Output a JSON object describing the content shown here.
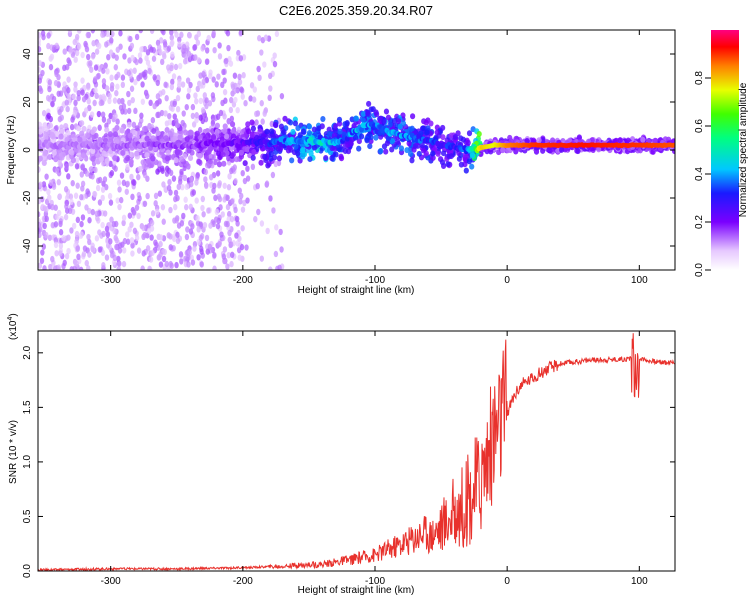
{
  "title": "C2E6.2025.359.20.34.R07",
  "chart_data": [
    {
      "type": "heatmap",
      "name": "spectrogram",
      "xlabel": "Height of straight line (km)",
      "ylabel": "Frequency (Hz)",
      "xlim": [
        -355,
        127
      ],
      "ylim": [
        -50,
        50
      ],
      "xticks": [
        -300,
        -200,
        -100,
        0,
        100
      ],
      "xtick_labels": [
        "-300",
        "-200",
        "-100",
        "0",
        "100"
      ],
      "yticks": [
        -40,
        -20,
        0,
        20,
        40
      ],
      "ytick_labels": [
        "-40",
        "-20",
        "0",
        "20",
        "40"
      ],
      "colorbar": {
        "label": "Normalized spectral amplitude",
        "range": [
          0,
          1
        ],
        "ticks": [
          0.0,
          0.2,
          0.4,
          0.6,
          0.8
        ],
        "tick_labels": [
          "0.0",
          "0.2",
          "0.4",
          "0.6",
          "0.8"
        ]
      },
      "ridge": {
        "x": [
          -355,
          -300,
          -250,
          -200,
          -180,
          -160,
          -140,
          -125,
          -115,
          -105,
          -95,
          -85,
          -70,
          -55,
          -40,
          -30,
          -20,
          -10,
          0,
          20,
          60,
          100,
          127
        ],
        "freq": [
          2,
          2,
          2,
          3,
          3,
          4,
          3,
          4,
          8,
          11,
          9,
          7,
          5,
          3,
          1,
          0,
          1,
          2,
          2,
          2,
          2,
          2,
          2
        ],
        "amplitude": [
          0.12,
          0.14,
          0.16,
          0.22,
          0.3,
          0.42,
          0.45,
          0.35,
          0.4,
          0.38,
          0.36,
          0.4,
          0.35,
          0.32,
          0.3,
          0.35,
          0.8,
          0.75,
          0.85,
          0.9,
          0.92,
          0.9,
          0.88
        ]
      }
    },
    {
      "type": "line",
      "name": "snr",
      "xlabel": "Height of straight line (km)",
      "ylabel": "SNR (10 * v/v)",
      "yscale_label": "(x10",
      "yscale_exp": "4",
      "xlim": [
        -355,
        127
      ],
      "ylim": [
        0,
        2.2
      ],
      "xticks": [
        -300,
        -200,
        -100,
        0,
        100
      ],
      "xtick_labels": [
        "-300",
        "-200",
        "-100",
        "0",
        "100"
      ],
      "yticks": [
        0.0,
        0.5,
        1.0,
        1.5,
        2.0
      ],
      "ytick_labels": [
        "0.0",
        "0.5",
        "1.0",
        "1.5",
        "2.0"
      ],
      "line_color": "#e8312c",
      "series": [
        {
          "name": "SNR",
          "x": [
            -355,
            -300,
            -250,
            -200,
            -180,
            -160,
            -140,
            -120,
            -100,
            -80,
            -60,
            -50,
            -40,
            -30,
            -20,
            -15,
            -10,
            -5,
            0,
            5,
            10,
            20,
            30,
            40,
            60,
            80,
            100,
            110,
            127
          ],
          "y": [
            0.0,
            0.01,
            0.01,
            0.02,
            0.03,
            0.04,
            0.05,
            0.08,
            0.12,
            0.2,
            0.3,
            0.38,
            0.5,
            0.6,
            0.8,
            1.0,
            1.2,
            1.3,
            1.45,
            1.6,
            1.7,
            1.78,
            1.85,
            1.9,
            1.93,
            1.94,
            1.95,
            1.92,
            1.91
          ]
        }
      ]
    }
  ]
}
